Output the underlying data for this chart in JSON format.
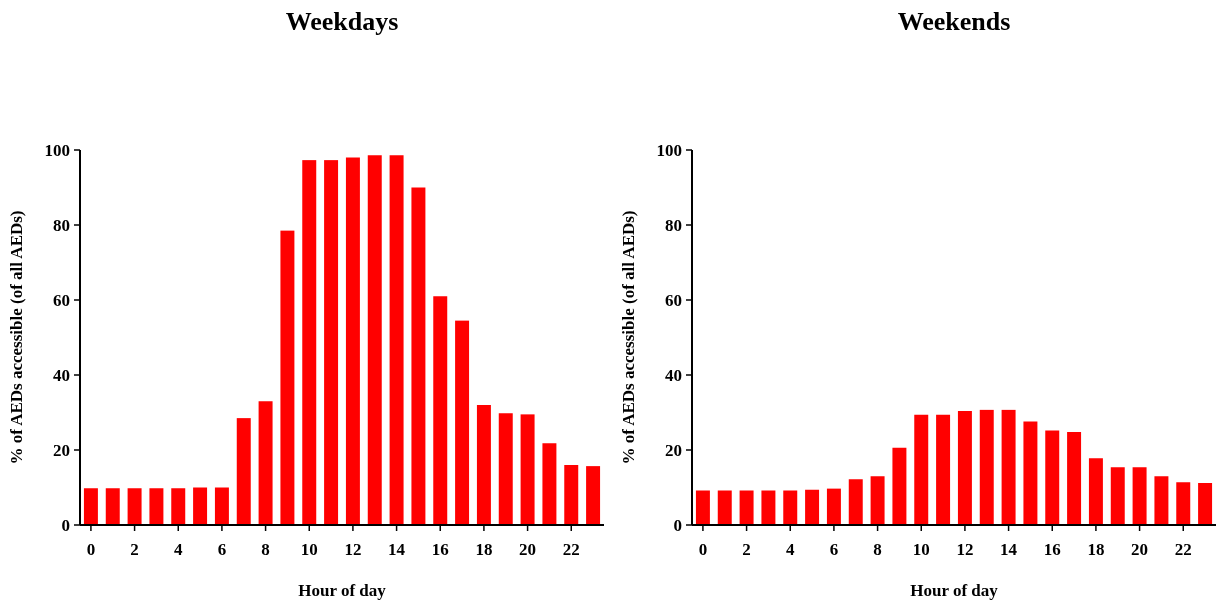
{
  "chart_data": [
    {
      "type": "bar",
      "title": "Weekdays",
      "xlabel": "Hour of day",
      "ylabel": "% of AEDs accessible (of all AEDs)",
      "categories": [
        "0",
        null,
        "2",
        null,
        "4",
        null,
        "6",
        null,
        "8",
        null,
        "10",
        null,
        "12",
        null,
        "14",
        null,
        "16",
        null,
        "18",
        null,
        "20",
        null,
        "22",
        null
      ],
      "values": [
        9.8,
        9.8,
        9.8,
        9.8,
        9.8,
        10,
        10,
        28.5,
        33,
        78.5,
        97.3,
        97.3,
        98,
        98.6,
        98.6,
        90,
        61,
        54.5,
        32,
        29.8,
        29.5,
        21.8,
        16,
        15.7
      ],
      "color": "#ff0000",
      "ylim": [
        0,
        100
      ],
      "yticks": [
        0,
        20,
        40,
        60,
        80,
        100
      ]
    },
    {
      "type": "bar",
      "title": "Weekends",
      "xlabel": "Hour of day",
      "ylabel": "% of AEDs accessible (of all AEDs)",
      "categories": [
        "0",
        null,
        "2",
        null,
        "4",
        null,
        "6",
        null,
        "8",
        null,
        "10",
        null,
        "12",
        null,
        "14",
        null,
        "16",
        null,
        "18",
        null,
        "20",
        null,
        "22",
        null
      ],
      "values": [
        9.2,
        9.2,
        9.2,
        9.2,
        9.2,
        9.4,
        9.7,
        12.2,
        13,
        20.6,
        29.4,
        29.4,
        30.4,
        30.7,
        30.7,
        27.6,
        25.2,
        24.8,
        17.8,
        15.4,
        15.4,
        13,
        11.4,
        11.2
      ],
      "color": "#ff0000",
      "ylim": [
        0,
        100
      ],
      "yticks": [
        0,
        20,
        40,
        60,
        80,
        100
      ]
    }
  ]
}
